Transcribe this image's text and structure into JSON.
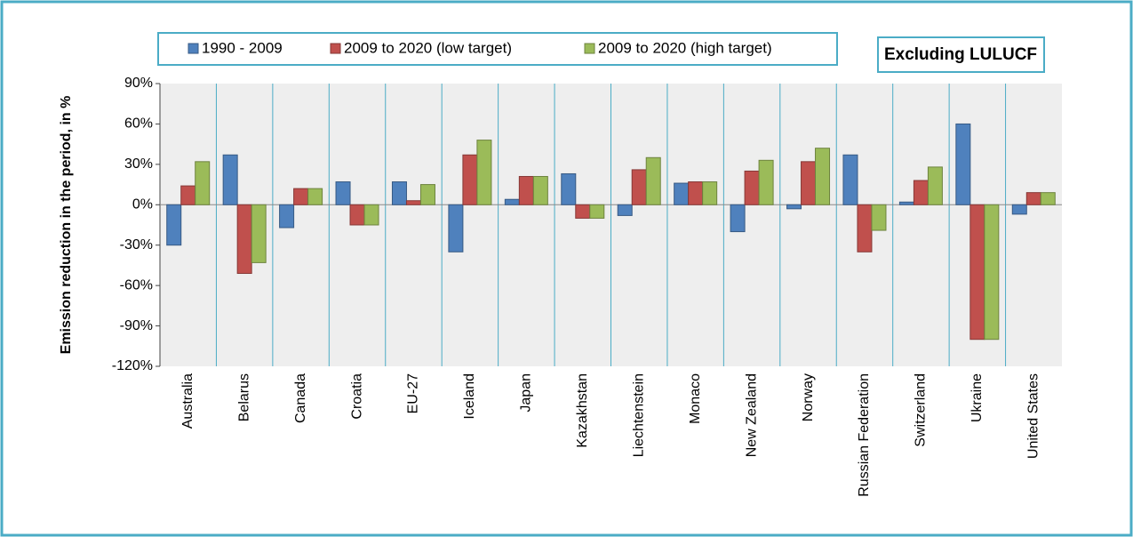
{
  "chart_data": {
    "type": "bar",
    "annotation": "Excluding LULUCF",
    "y_label": "Emission reduction in the period, in %",
    "categories": [
      "Australia",
      "Belarus",
      "Canada",
      "Croatia",
      "EU-27",
      "Iceland",
      "Japan",
      "Kazakhstan",
      "Liechtenstein",
      "Monaco",
      "New Zealand",
      "Norway",
      "Russian Federation",
      "Switzerland",
      "Ukraine",
      "United States"
    ],
    "series": [
      {
        "name": "1990 - 2009",
        "color": "#4f81bd",
        "values": [
          -30,
          37,
          -17,
          17,
          17,
          -35,
          4,
          23,
          -8,
          16,
          -20,
          -3,
          37,
          2,
          60,
          -7
        ]
      },
      {
        "name": "2009 to 2020 (low target)",
        "color": "#c0504d",
        "values": [
          14,
          -51,
          12,
          -15,
          3,
          37,
          21,
          -10,
          26,
          17,
          25,
          32,
          -35,
          18,
          -100,
          9
        ]
      },
      {
        "name": "2009 to 2020 (high target)",
        "color": "#9bbb59",
        "values": [
          32,
          -43,
          12,
          -15,
          15,
          48,
          21,
          -10,
          35,
          17,
          33,
          42,
          -19,
          28,
          -100,
          9
        ]
      }
    ],
    "ylim": [
      -120,
      90
    ],
    "yticks": [
      {
        "value": -120,
        "label": "-120%"
      },
      {
        "value": -90,
        "label": "-90%"
      },
      {
        "value": -60,
        "label": "-60%"
      },
      {
        "value": -30,
        "label": "-30%"
      },
      {
        "value": 0,
        "label": "0%"
      },
      {
        "value": 30,
        "label": "30%"
      },
      {
        "value": 60,
        "label": "60%"
      },
      {
        "value": 90,
        "label": "90%"
      }
    ],
    "grid": false
  }
}
